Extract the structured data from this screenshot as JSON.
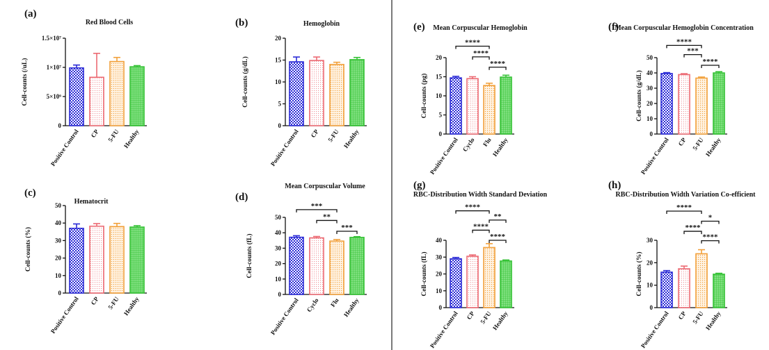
{
  "colors": {
    "series": [
      "#2b2bd6",
      "#ec6a73",
      "#f2a03a",
      "#36c236"
    ],
    "divider": "#222222"
  },
  "chart_data": [
    {
      "panel": "(a)",
      "type": "bar",
      "title": "Red Blood Cells",
      "ylabel": "Cell-counts (/uL)",
      "categories": [
        "Positive Control",
        "CP",
        "5-FU",
        "Healthy"
      ],
      "values": [
        9900000,
        8300000,
        11000000,
        10100000
      ],
      "errors": [
        500000,
        4100000,
        700000,
        200000
      ],
      "ylim": [
        0,
        15000000
      ],
      "yticks": [
        0,
        5000000,
        10000000,
        15000000
      ],
      "ytick_labels": [
        "0",
        "5×10⁶",
        "1×10⁷",
        "1.5×10⁷"
      ],
      "significance": []
    },
    {
      "panel": "(b)",
      "type": "bar",
      "title": "Hemoglobin",
      "ylabel": "Cell-counts (g/dL)",
      "categories": [
        "Positive Control",
        "CP",
        "5-FU",
        "Healthy"
      ],
      "values": [
        14.6,
        14.9,
        14.0,
        15.1
      ],
      "errors": [
        1.1,
        0.8,
        0.5,
        0.5
      ],
      "ylim": [
        0,
        20
      ],
      "yticks": [
        0,
        5,
        10,
        15,
        20
      ],
      "ytick_labels": [
        "0",
        "5",
        "10",
        "15",
        "20"
      ],
      "significance": []
    },
    {
      "panel": "(c)",
      "type": "bar",
      "title": "Hematocrit",
      "ylabel": "Cell-counts (%)",
      "categories": [
        "Positive Control",
        "CP",
        "5-FU",
        "Healthy"
      ],
      "values": [
        37.0,
        38.2,
        38.0,
        37.7
      ],
      "errors": [
        2.5,
        1.5,
        1.8,
        0.8
      ],
      "ylim": [
        0,
        50
      ],
      "yticks": [
        0,
        10,
        20,
        30,
        40,
        50
      ],
      "ytick_labels": [
        "0",
        "10",
        "20",
        "30",
        "40",
        "50"
      ],
      "significance": []
    },
    {
      "panel": "(d)",
      "type": "bar",
      "title": "Mean Corpuscular Volume",
      "ylabel": "Cell-counts (fL)",
      "categories": [
        "Positive Control",
        "Cyclo",
        "Flu",
        "Healthy"
      ],
      "values": [
        37.1,
        36.7,
        34.6,
        37.0
      ],
      "errors": [
        1.0,
        0.9,
        1.0,
        0.5
      ],
      "ylim": [
        0,
        50
      ],
      "yticks": [
        0,
        10,
        20,
        30,
        40,
        50
      ],
      "ytick_labels": [
        "0",
        "10",
        "20",
        "30",
        "40",
        "50"
      ],
      "significance": [
        {
          "from": 0,
          "to": 2,
          "label": "***",
          "level": 55
        },
        {
          "from": 1,
          "to": 2,
          "label": "**",
          "level": 48
        },
        {
          "from": 2,
          "to": 3,
          "label": "***",
          "level": 41
        }
      ]
    },
    {
      "panel": "(e)",
      "type": "bar",
      "title": "Mean Corpuscular Hemoglobin",
      "ylabel": "Cell-counts (pg)",
      "categories": [
        "Positive Control",
        "Cyclo",
        "Flu",
        "Healthy"
      ],
      "values": [
        14.7,
        14.5,
        12.7,
        14.9
      ],
      "errors": [
        0.4,
        0.5,
        0.6,
        0.5
      ],
      "ylim": [
        0,
        20
      ],
      "yticks": [
        0,
        5,
        10,
        15,
        20
      ],
      "ytick_labels": [
        "0",
        "5",
        "10",
        "15",
        "20"
      ],
      "significance": [
        {
          "from": 0,
          "to": 2,
          "label": "****",
          "level": 23
        },
        {
          "from": 1,
          "to": 2,
          "label": "****",
          "level": 20.2
        },
        {
          "from": 2,
          "to": 3,
          "label": "****",
          "level": 17.5
        }
      ]
    },
    {
      "panel": "(f)",
      "type": "bar",
      "title": "Mean Corpuscular Hemoglobin Concentration",
      "ylabel": "Cell-counts (g/dL)",
      "categories": [
        "Positive Control",
        "CP",
        "5-FU",
        "Healthy"
      ],
      "values": [
        39.6,
        38.9,
        36.6,
        40.0
      ],
      "errors": [
        0.6,
        0.6,
        0.7,
        0.8
      ],
      "ylim": [
        0,
        50
      ],
      "yticks": [
        0,
        10,
        20,
        30,
        40,
        50
      ],
      "ytick_labels": [
        "0",
        "10",
        "20",
        "30",
        "40",
        "50"
      ],
      "significance": [
        {
          "from": 0,
          "to": 2,
          "label": "****",
          "level": 58
        },
        {
          "from": 1,
          "to": 2,
          "label": "***",
          "level": 52
        },
        {
          "from": 2,
          "to": 3,
          "label": "****",
          "level": 45
        }
      ]
    },
    {
      "panel": "(g)",
      "type": "bar",
      "title": "RBC-Distribution Width Standard Deviation",
      "ylabel": "Cell-counts (fL)",
      "categories": [
        "Positive Control",
        "CP",
        "5-FU",
        "Healthy"
      ],
      "values": [
        29.0,
        30.5,
        35.7,
        27.7
      ],
      "errors": [
        0.8,
        0.8,
        2.3,
        0.6
      ],
      "ylim": [
        0,
        40
      ],
      "yticks": [
        0,
        10,
        20,
        30,
        40
      ],
      "ytick_labels": [
        "0",
        "10",
        "20",
        "30",
        "40"
      ],
      "significance": [
        {
          "from": 0,
          "to": 2,
          "label": "****",
          "level": 57.5
        },
        {
          "from": 2,
          "to": 3,
          "label": "**",
          "level": 52
        },
        {
          "from": 1,
          "to": 2,
          "label": "****",
          "level": 46
        },
        {
          "from": 2,
          "to": 3,
          "label": "****",
          "level": 40
        }
      ]
    },
    {
      "panel": "(h)",
      "type": "bar",
      "title": "RBC-Distribution Width Variation Co-efficient",
      "ylabel": "Cell-counts (%)",
      "categories": [
        "Positive Control",
        "CP",
        "5-FU",
        "Healthy"
      ],
      "values": [
        15.8,
        17.3,
        24.0,
        14.9
      ],
      "errors": [
        0.7,
        1.2,
        1.8,
        0.4
      ],
      "ylim": [
        0,
        30
      ],
      "yticks": [
        0,
        10,
        20,
        30
      ],
      "ytick_labels": [
        "0",
        "10",
        "20",
        "30"
      ],
      "significance": [
        {
          "from": 0,
          "to": 2,
          "label": "****",
          "level": 43
        },
        {
          "from": 2,
          "to": 3,
          "label": "*",
          "level": 38.5
        },
        {
          "from": 1,
          "to": 2,
          "label": "****",
          "level": 34
        },
        {
          "from": 2,
          "to": 3,
          "label": "****",
          "level": 29.8
        }
      ]
    }
  ]
}
